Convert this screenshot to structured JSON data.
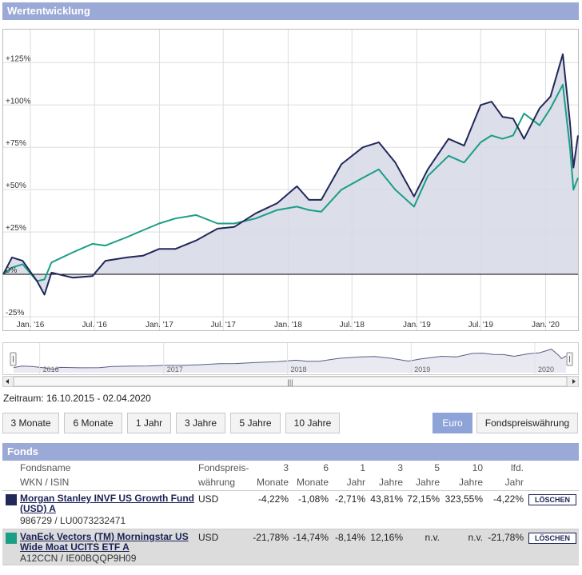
{
  "panel_title": "Wertentwicklung",
  "chart_data": {
    "type": "line",
    "y_ticks": [
      "+125%",
      "+100%",
      "+75%",
      "+50%",
      "+25%",
      "0%",
      "-25%"
    ],
    "y_tick_values": [
      125,
      100,
      75,
      50,
      25,
      0,
      -25
    ],
    "ylim": [
      -25,
      145
    ],
    "x_ticks": [
      "Jan. '16",
      "Jul. '16",
      "Jan. '17",
      "Jul. '17",
      "Jan. '18",
      "Jul. '18",
      "Jan. '19",
      "Jul. '19",
      "Jan. '20"
    ],
    "x_tick_dates": [
      "2016-01-01",
      "2016-07-01",
      "2017-01-01",
      "2017-07-01",
      "2018-01-01",
      "2018-07-01",
      "2019-01-01",
      "2019-07-01",
      "2020-01-01"
    ],
    "x_range": [
      "2015-10-16",
      "2020-04-02"
    ],
    "grid": true,
    "series": [
      {
        "color": "#22285a",
        "points": [
          [
            "2015-10-16",
            0
          ],
          [
            "2015-11-10",
            10
          ],
          [
            "2015-12-10",
            8
          ],
          [
            "2016-01-20",
            -4
          ],
          [
            "2016-02-10",
            -12
          ],
          [
            "2016-03-01",
            1
          ],
          [
            "2016-05-01",
            -2
          ],
          [
            "2016-06-25",
            -1
          ],
          [
            "2016-08-01",
            8
          ],
          [
            "2016-10-01",
            10
          ],
          [
            "2016-11-15",
            11
          ],
          [
            "2016-12-31",
            15
          ],
          [
            "2017-02-15",
            15
          ],
          [
            "2017-04-15",
            20
          ],
          [
            "2017-06-15",
            27
          ],
          [
            "2017-08-01",
            28
          ],
          [
            "2017-10-01",
            36
          ],
          [
            "2017-12-01",
            42
          ],
          [
            "2018-01-26",
            52
          ],
          [
            "2018-03-01",
            44
          ],
          [
            "2018-04-05",
            44
          ],
          [
            "2018-06-01",
            65
          ],
          [
            "2018-08-01",
            75
          ],
          [
            "2018-09-15",
            78
          ],
          [
            "2018-11-01",
            66
          ],
          [
            "2018-12-24",
            46
          ],
          [
            "2019-02-01",
            62
          ],
          [
            "2019-04-01",
            80
          ],
          [
            "2019-05-15",
            76
          ],
          [
            "2019-07-01",
            100
          ],
          [
            "2019-08-01",
            102
          ],
          [
            "2019-09-01",
            93
          ],
          [
            "2019-10-01",
            92
          ],
          [
            "2019-11-01",
            80
          ],
          [
            "2019-12-15",
            98
          ],
          [
            "2020-01-15",
            105
          ],
          [
            "2020-02-19",
            130
          ],
          [
            "2020-03-10",
            90
          ],
          [
            "2020-03-20",
            63
          ],
          [
            "2020-04-02",
            82
          ]
        ]
      },
      {
        "color": "#1a9e86",
        "points": [
          [
            "2015-10-16",
            0
          ],
          [
            "2015-11-10",
            4
          ],
          [
            "2015-12-10",
            6
          ],
          [
            "2016-01-20",
            -4
          ],
          [
            "2016-02-10",
            -3
          ],
          [
            "2016-03-01",
            7
          ],
          [
            "2016-05-01",
            13
          ],
          [
            "2016-06-25",
            18
          ],
          [
            "2016-08-01",
            17
          ],
          [
            "2016-10-01",
            22
          ],
          [
            "2016-11-15",
            26
          ],
          [
            "2016-12-31",
            30
          ],
          [
            "2017-02-15",
            33
          ],
          [
            "2017-04-15",
            35
          ],
          [
            "2017-06-15",
            30
          ],
          [
            "2017-08-01",
            30
          ],
          [
            "2017-10-01",
            33
          ],
          [
            "2017-12-01",
            38
          ],
          [
            "2018-01-26",
            40
          ],
          [
            "2018-03-01",
            38
          ],
          [
            "2018-04-05",
            37
          ],
          [
            "2018-06-01",
            50
          ],
          [
            "2018-08-01",
            57
          ],
          [
            "2018-09-15",
            62
          ],
          [
            "2018-11-01",
            50
          ],
          [
            "2018-12-24",
            40
          ],
          [
            "2019-02-01",
            58
          ],
          [
            "2019-04-01",
            70
          ],
          [
            "2019-05-15",
            66
          ],
          [
            "2019-07-01",
            78
          ],
          [
            "2019-08-01",
            82
          ],
          [
            "2019-09-01",
            80
          ],
          [
            "2019-10-01",
            82
          ],
          [
            "2019-11-01",
            95
          ],
          [
            "2019-12-15",
            88
          ],
          [
            "2020-01-15",
            98
          ],
          [
            "2020-02-19",
            112
          ],
          [
            "2020-03-10",
            75
          ],
          [
            "2020-03-20",
            50
          ],
          [
            "2020-04-02",
            57
          ]
        ]
      }
    ]
  },
  "navigator": {
    "years": [
      "2016",
      "2017",
      "2018",
      "2019",
      "2020"
    ],
    "scrollbar_grip": "|||"
  },
  "zeitraum": "Zeitraum: 16.10.2015 - 02.04.2020",
  "period_buttons": [
    "3 Monate",
    "6 Monate",
    "1 Jahr",
    "3 Jahre",
    "5 Jahre",
    "10 Jahre"
  ],
  "currency_buttons": {
    "euro": "Euro",
    "fund": "Fondspreiswährung"
  },
  "fonds_title": "Fonds",
  "table_headers": {
    "name1": "Fondsname",
    "name2": "WKN / ISIN",
    "cur1": "Fondspreis-",
    "cur2": "währung",
    "m3a": "3",
    "m3b": "Monate",
    "m6a": "6",
    "m6b": "Monate",
    "y1a": "1",
    "y1b": "Jahr",
    "y3a": "3",
    "y3b": "Jahre",
    "y5a": "5",
    "y5b": "Jahre",
    "y10a": "10",
    "y10b": "Jahre",
    "lfda": "lfd.",
    "lfdb": "Jahr"
  },
  "funds": [
    {
      "color": "#22285a",
      "name": "Morgan Stanley INVF US Growth Fund (USD) A",
      "ids": "986729 / LU0073232471",
      "currency": "USD",
      "m3": "-4,22%",
      "m6": "-1,08%",
      "y1": "-2,71%",
      "y3": "43,81%",
      "y5": "72,15%",
      "y10": "323,55%",
      "lfd": "-4,22%",
      "delete": "LÖSCHEN"
    },
    {
      "color": "#1a9e86",
      "name": "VanEck Vectors (TM) Morningstar US Wide Moat UCITS ETF A",
      "ids": "A12CCN / IE00BQQP9H09",
      "currency": "USD",
      "m3": "-21,78%",
      "m6": "-14,74%",
      "y1": "-8,14%",
      "y3": "12,16%",
      "y5": "n.v.",
      "y10": "n.v.",
      "lfd": "-21,78%",
      "delete": "LÖSCHEN"
    }
  ]
}
